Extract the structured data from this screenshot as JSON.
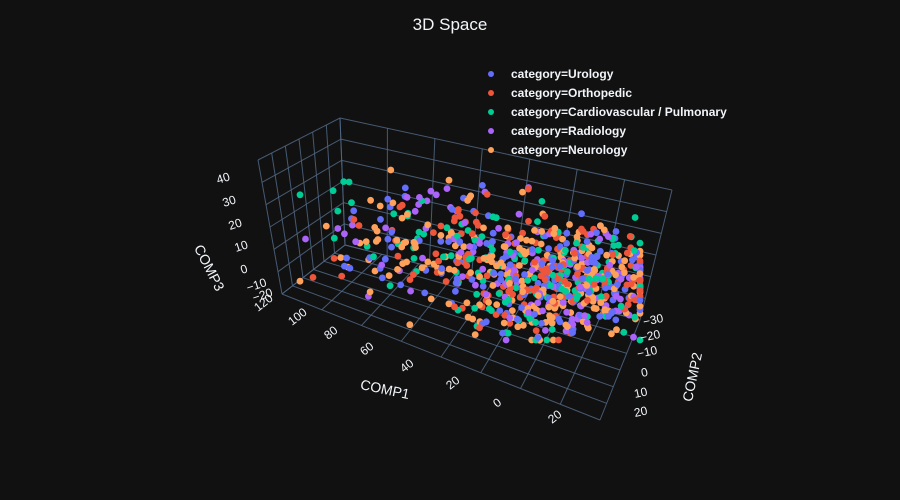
{
  "chart_data": {
    "type": "scatter",
    "title": "3D Space",
    "axes": {
      "x": {
        "label": "COMP1",
        "ticks": [
          "120",
          "100",
          "80",
          "60",
          "40",
          "20",
          "0",
          "20"
        ]
      },
      "y": {
        "label": "COMP2",
        "ticks": [
          "−30",
          "−20",
          "−10",
          "0",
          "10",
          "20"
        ]
      },
      "z": {
        "label": "COMP3",
        "ticks": [
          "40",
          "30",
          "20",
          "10",
          "0",
          "−10",
          "−20"
        ]
      }
    },
    "legend_placement": "top-right",
    "series": [
      {
        "name": "category=Urology",
        "color": "#636efa"
      },
      {
        "name": "category=Orthopedic",
        "color": "#EF553B"
      },
      {
        "name": "category=Cardiovascular / Pulmonary",
        "color": "#00cc96"
      },
      {
        "name": "category=Radiology",
        "color": "#ab63fa"
      },
      {
        "name": "category=Neurology",
        "color": "#FFA15A"
      }
    ]
  }
}
